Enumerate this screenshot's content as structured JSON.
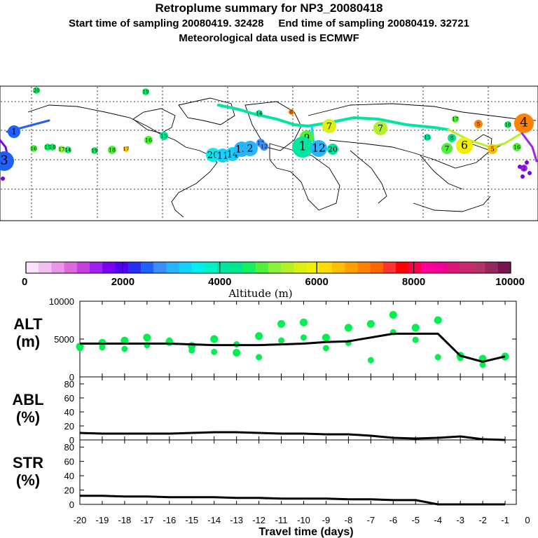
{
  "header": {
    "title": "Retroplume summary for NP3_20080418",
    "subtitle": "Start time of sampling 20080419. 32428     End time of sampling 20080419. 32721",
    "met": "Meteorological data used is ECMWF"
  },
  "colors": {
    "palette": [
      "#f9e3f9",
      "#f1bff1",
      "#e897e8",
      "#dc6adc",
      "#c540dc",
      "#a020f0",
      "#7a00f0",
      "#5000f0",
      "#2830f0",
      "#2060ff",
      "#3c8cff",
      "#28b4ff",
      "#14d2ff",
      "#00f0f0",
      "#00f0c8",
      "#00e6a0",
      "#00e68c",
      "#14f064",
      "#50f03c",
      "#8cf03c",
      "#b4f028",
      "#dcf014",
      "#f0f000",
      "#ffdc00",
      "#ffbe00",
      "#ffa000",
      "#ff8200",
      "#ff6400",
      "#ff3232",
      "#ff0000",
      "#ff0050",
      "#ff0096",
      "#f00096",
      "#dc1478",
      "#c8286e",
      "#b43264",
      "#962860",
      "#781450"
    ],
    "marker": "#00f050",
    "line": "#000000"
  },
  "map": {
    "markers": [
      {
        "t": "1",
        "c": "#2060ff"
      },
      {
        "t": "3",
        "c": "#2060ff"
      },
      {
        "t": "20",
        "c": "#14f064"
      },
      {
        "t": "19",
        "c": "#14f064"
      },
      {
        "t": "18",
        "c": "#14f064"
      },
      {
        "t": "17",
        "c": "#8cf03c"
      },
      {
        "t": "16",
        "c": "#50f03c"
      },
      {
        "t": "15",
        "c": "#14f064"
      },
      {
        "t": "14",
        "c": "#14f064"
      },
      {
        "t": "19",
        "c": "#14f064"
      },
      {
        "t": "18",
        "c": "#50f03c"
      },
      {
        "t": "17",
        "c": "#ffbe00"
      },
      {
        "t": "16",
        "c": "#50f03c"
      },
      {
        "t": "15",
        "c": "#00e68c"
      },
      {
        "t": "20",
        "c": "#00f0f0"
      },
      {
        "t": "11",
        "c": "#14d2ff"
      },
      {
        "t": "14",
        "c": "#14d2ff"
      },
      {
        "t": "13",
        "c": "#28b4ff"
      },
      {
        "t": "2",
        "c": "#28b4ff"
      },
      {
        "t": "12",
        "c": "#3c8cff"
      },
      {
        "t": "12",
        "c": "#3c8cff"
      },
      {
        "t": "9",
        "c": "#50f03c"
      },
      {
        "t": "1",
        "c": "#00e6a0"
      },
      {
        "t": "12",
        "c": "#28b4ff"
      },
      {
        "t": "20",
        "c": "#00e6a0"
      },
      {
        "t": "7",
        "c": "#dcf014"
      },
      {
        "t": "7",
        "c": "#b4f028"
      },
      {
        "t": "8",
        "c": "#ff8200"
      },
      {
        "t": "14",
        "c": "#00e68c"
      },
      {
        "t": "6",
        "c": "#f0f000"
      },
      {
        "t": "5",
        "c": "#ffbe00"
      },
      {
        "t": "4",
        "c": "#ff8200"
      },
      {
        "t": "5",
        "c": "#ff8200"
      },
      {
        "t": "7",
        "c": "#50f03c"
      },
      {
        "t": "8",
        "c": "#00e68c"
      },
      {
        "t": "16",
        "c": "#50f03c"
      },
      {
        "t": "17",
        "c": "#50f03c"
      },
      {
        "t": "15",
        "c": "#00e6a0"
      },
      {
        "t": "18",
        "c": "#14f064"
      },
      {
        "t": "2",
        "c": "#a020f0"
      }
    ]
  },
  "colorbar": {
    "ticks": [
      "0",
      "2000",
      "4000",
      "6000",
      "8000",
      "10000"
    ],
    "label": "Altitude (m)"
  },
  "panels": {
    "alt": {
      "label1": "ALT",
      "label2": "(m)",
      "ticks": [
        "10000",
        "5000",
        "0"
      ]
    },
    "abl": {
      "label1": "ABL",
      "label2": "(%)",
      "ticks": [
        "80",
        "60",
        "40",
        "20",
        "0"
      ]
    },
    "str": {
      "label1": "STR",
      "label2": "(%)",
      "ticks": [
        "80",
        "60",
        "40",
        "20",
        "0"
      ]
    }
  },
  "chart_data": {
    "type": "line",
    "title": "Retroplume summary for NP3_20080418",
    "xlabel": "Travel time (days)",
    "xlim": [
      -20,
      0
    ],
    "x_ticks": [
      "-20",
      "-19",
      "-18",
      "-17",
      "-16",
      "-15",
      "-14",
      "-13",
      "-12",
      "-11",
      "-10",
      "-9",
      "-8",
      "-7",
      "-6",
      "-5",
      "-4",
      "-3",
      "-2",
      "-1",
      "0"
    ],
    "x": [
      -20,
      -19,
      -18,
      -17,
      -16,
      -15,
      -14,
      -13,
      -12,
      -11,
      -10,
      -9,
      -8,
      -7,
      -6,
      -5,
      -4,
      -3,
      -2,
      -1
    ],
    "series": [
      {
        "name": "ALT",
        "ylabel": "ALT (m)",
        "ylim": [
          0,
          10000
        ],
        "values": [
          4400,
          4400,
          4400,
          4400,
          4400,
          4300,
          4200,
          4200,
          4200,
          4300,
          4400,
          4600,
          4700,
          5200,
          5700,
          5700,
          5700,
          2800,
          2000,
          2700
        ]
      },
      {
        "name": "ABL",
        "ylabel": "ABL (%)",
        "ylim": [
          0,
          90
        ],
        "values": [
          10,
          9,
          9,
          9,
          9,
          10,
          11,
          11,
          10,
          9,
          9,
          8,
          8,
          6,
          3,
          2,
          3,
          5,
          1,
          0
        ]
      },
      {
        "name": "STR",
        "ylabel": "STR (%)",
        "ylim": [
          0,
          90
        ],
        "values": [
          12,
          12,
          11,
          11,
          10,
          10,
          10,
          9,
          9,
          8,
          8,
          8,
          7,
          7,
          6,
          6,
          0,
          0,
          0,
          0
        ]
      }
    ],
    "cluster_altitudes": [
      [
        4000,
        3800
      ],
      [
        4500,
        3900
      ],
      [
        4800,
        3700
      ],
      [
        5200,
        4200
      ],
      [
        4600,
        4800
      ],
      [
        4100,
        3500
      ],
      [
        5000,
        3300
      ],
      [
        3200,
        4300
      ],
      [
        5400,
        2600
      ],
      [
        7000,
        4800
      ],
      [
        7200,
        5200
      ],
      [
        5200,
        3800
      ],
      [
        6500,
        4500
      ],
      [
        7000,
        2200
      ],
      [
        8200,
        5900
      ],
      [
        6500,
        4900
      ],
      [
        7500,
        2600
      ],
      [
        2800,
        2500
      ],
      [
        2400,
        1600
      ],
      [
        2700,
        2600
      ]
    ],
    "colorbar": {
      "ticks": [
        0,
        2000,
        4000,
        6000,
        8000,
        10000
      ],
      "label": "Altitude (m)"
    }
  }
}
